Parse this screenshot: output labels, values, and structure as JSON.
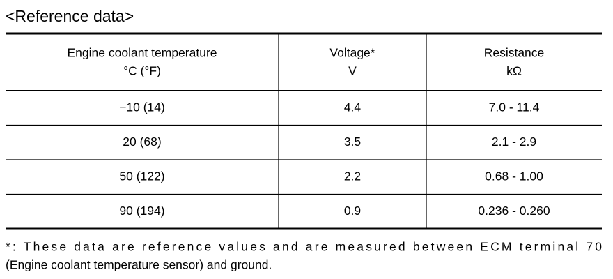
{
  "title": "<Reference data>",
  "table": {
    "header": [
      [
        "Engine coolant temperature",
        "°C (°F)"
      ],
      [
        "Voltage*",
        "V"
      ],
      [
        "Resistance",
        "kΩ"
      ]
    ],
    "rows": [
      [
        "−10 (14)",
        "4.4",
        "7.0 - 11.4"
      ],
      [
        "20 (68)",
        "3.5",
        "2.1 - 2.9"
      ],
      [
        "50 (122)",
        "2.2",
        "0.68 - 1.00"
      ],
      [
        "90 (194)",
        "0.9",
        "0.236 - 0.260"
      ]
    ]
  },
  "footnote": [
    "*: These data are reference values and are measured between ECM terminal 70",
    "(Engine coolant temperature sensor) and ground."
  ]
}
